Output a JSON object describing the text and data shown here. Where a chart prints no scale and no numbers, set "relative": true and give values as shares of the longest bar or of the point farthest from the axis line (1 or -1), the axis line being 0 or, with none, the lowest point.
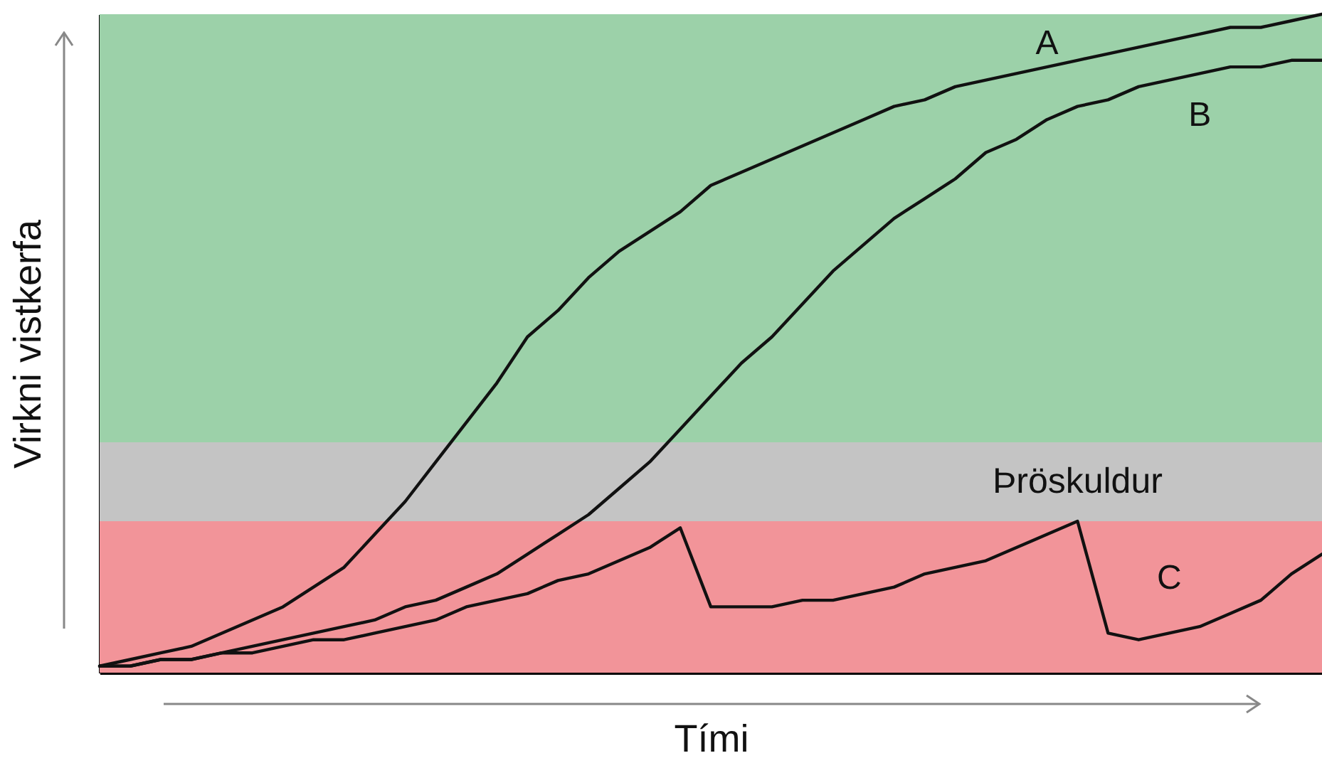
{
  "chart_data": {
    "type": "line",
    "relative": true,
    "xlabel": "Tími",
    "ylabel": "Virkni vistkerfa",
    "categories": [
      null,
      null,
      null,
      null,
      null,
      null,
      null,
      null,
      null,
      null,
      null,
      null,
      null,
      null,
      null,
      null,
      null,
      null,
      null,
      null,
      null,
      null,
      null,
      null,
      null,
      null,
      null,
      null,
      null,
      null,
      null,
      null,
      null,
      null,
      null,
      null,
      null,
      null,
      null,
      null,
      null
    ],
    "series": [
      {
        "name": "A",
        "color": "#111111",
        "values": [
          0.01,
          0.02,
          0.03,
          0.04,
          0.06,
          0.08,
          0.1,
          0.13,
          0.16,
          0.21,
          0.26,
          0.32,
          0.38,
          0.44,
          0.51,
          0.55,
          0.6,
          0.64,
          0.67,
          0.7,
          0.74,
          0.76,
          0.78,
          0.8,
          0.82,
          0.84,
          0.86,
          0.87,
          0.89,
          0.9,
          0.91,
          0.92,
          0.93,
          0.94,
          0.95,
          0.96,
          0.97,
          0.98,
          0.98,
          0.99,
          1
        ]
      },
      {
        "name": "B",
        "color": "#111111",
        "values": [
          0.01,
          0.01,
          0.02,
          0.02,
          0.03,
          0.04,
          0.05,
          0.06,
          0.07,
          0.08,
          0.1,
          0.11,
          0.13,
          0.15,
          0.18,
          0.21,
          0.24,
          0.28,
          0.32,
          0.37,
          0.42,
          0.47,
          0.51,
          0.56,
          0.61,
          0.65,
          0.69,
          0.72,
          0.75,
          0.79,
          0.81,
          0.84,
          0.86,
          0.87,
          0.89,
          0.9,
          0.91,
          0.92,
          0.92,
          0.93,
          0.93
        ]
      },
      {
        "name": "C",
        "color": "#111111",
        "values": [
          0.01,
          0.01,
          0.02,
          0.02,
          0.03,
          0.03,
          0.04,
          0.05,
          0.05,
          0.06,
          0.07,
          0.08,
          0.1,
          0.11,
          0.12,
          0.14,
          0.15,
          0.17,
          0.19,
          0.22,
          0.1,
          0.1,
          0.1,
          0.11,
          0.11,
          0.12,
          0.13,
          0.15,
          0.16,
          0.17,
          0.19,
          0.21,
          0.23,
          0.06,
          0.05,
          0.06,
          0.07,
          0.09,
          0.11,
          0.15,
          0.18
        ]
      }
    ],
    "bands": [
      {
        "axis": "y",
        "from": 0,
        "to": 0.23,
        "color": "#f29499"
      },
      {
        "axis": "y",
        "from": 0.23,
        "to": 0.35,
        "label": "Þröskuldur",
        "color": "#c4c4c4"
      },
      {
        "axis": "y",
        "from": 0.35,
        "to": 1,
        "color": "#9cd1a9"
      }
    ]
  }
}
